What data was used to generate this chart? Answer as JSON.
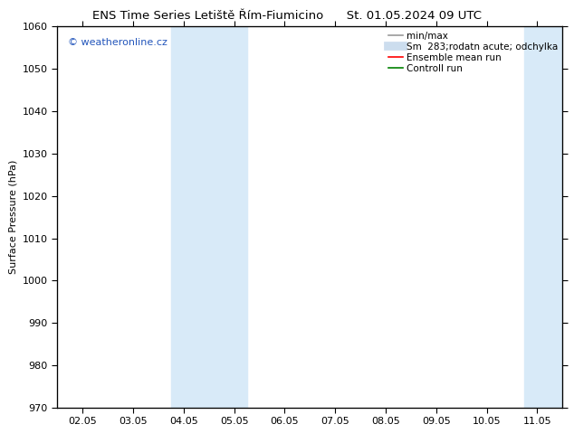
{
  "title_left": "ENS Time Series Letiště Řím-Fiumicino",
  "title_right": "St. 01.05.2024 09 UTC",
  "ylabel": "Surface Pressure (hPa)",
  "ylim": [
    970,
    1060
  ],
  "yticks": [
    970,
    980,
    990,
    1000,
    1010,
    1020,
    1030,
    1040,
    1050,
    1060
  ],
  "xtick_labels": [
    "02.05",
    "03.05",
    "04.05",
    "05.05",
    "06.05",
    "07.05",
    "08.05",
    "09.05",
    "10.05",
    "11.05"
  ],
  "xtick_positions": [
    0,
    1,
    2,
    3,
    4,
    5,
    6,
    7,
    8,
    9
  ],
  "xlim": [
    -0.5,
    9.5
  ],
  "shaded_regions": [
    {
      "x_start": 1.75,
      "x_end": 3.25,
      "color": "#d8eaf8"
    },
    {
      "x_start": 8.75,
      "x_end": 9.5,
      "color": "#d8eaf8"
    }
  ],
  "watermark_text": "© weatheronline.cz",
  "watermark_color": "#2255bb",
  "legend_entries": [
    {
      "label": "min/max",
      "color": "#999999",
      "lw": 1.2,
      "linestyle": "-"
    },
    {
      "label": "Sm  283;rodatn acute; odchylka",
      "color": "#ccddee",
      "lw": 7,
      "linestyle": "-"
    },
    {
      "label": "Ensemble mean run",
      "color": "red",
      "lw": 1.2,
      "linestyle": "-"
    },
    {
      "label": "Controll run",
      "color": "green",
      "lw": 1.2,
      "linestyle": "-"
    }
  ],
  "bg_color": "#ffffff",
  "axes_color": "#000000",
  "grid_color": "#cccccc",
  "font_size": 8,
  "title_font_size": 9.5
}
